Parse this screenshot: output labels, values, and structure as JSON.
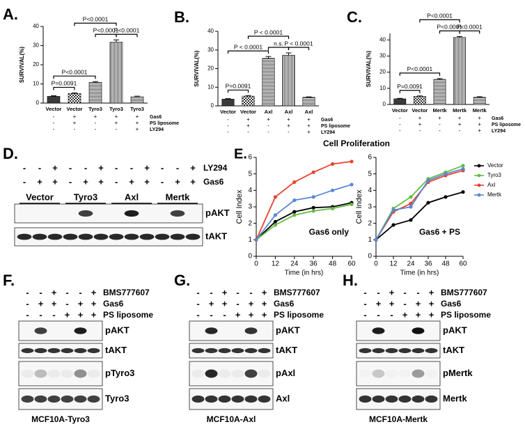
{
  "chart_data": [
    {
      "type": "bar",
      "panel": "A.",
      "ylabel": "SURVIVAL(%)",
      "categories": [
        "Vector",
        "Vector",
        "Tyro3",
        "Tyro3",
        "Tyro3"
      ],
      "values": [
        3.5,
        5.0,
        10.8,
        31.8,
        3.3
      ],
      "errors": [
        0.3,
        0.3,
        0.4,
        1.2,
        0.3
      ],
      "patterns": [
        "solid",
        "checker",
        "hlines",
        "vlines",
        "hlines"
      ],
      "ylim": [
        0,
        40
      ],
      "yticks": [
        0,
        10,
        20,
        30,
        40
      ],
      "conditions": [
        {
          "name": "Gas6",
          "signs": [
            "-",
            "+",
            "+",
            "+",
            "+"
          ]
        },
        {
          "name": "PS liposome",
          "signs": [
            "-",
            "+",
            "-",
            "+",
            "+"
          ]
        },
        {
          "name": "LY294",
          "signs": [
            "-",
            "-",
            "-",
            "-",
            "+"
          ]
        }
      ],
      "comparisons": [
        {
          "from": 0,
          "to": 1,
          "label": "P=0.0091"
        },
        {
          "from": 0,
          "to": 2,
          "label": "P<0.0001"
        },
        {
          "from": 2,
          "to": 3,
          "label": "P<0.0001"
        },
        {
          "from": 3,
          "to": 4,
          "label": "P<0.0001"
        },
        {
          "from": 1,
          "to": 3,
          "label": "P<0.0001"
        }
      ]
    },
    {
      "type": "bar",
      "panel": "B.",
      "ylabel": "SURVIVAL(%)",
      "categories": [
        "Vector",
        "Vector",
        "Axl",
        "Axl",
        "Axl"
      ],
      "values": [
        3.6,
        5.2,
        25.5,
        27.2,
        4.6
      ],
      "errors": [
        0.3,
        0.3,
        1.0,
        1.2,
        0.2
      ],
      "patterns": [
        "solid",
        "checker",
        "hlines",
        "vlines",
        "hlines"
      ],
      "ylim": [
        0,
        40
      ],
      "yticks": [
        0,
        10,
        20,
        30,
        40
      ],
      "conditions": [
        {
          "name": "Gas6",
          "signs": [
            "-",
            "+",
            "+",
            "+",
            "+"
          ]
        },
        {
          "name": "PS liposome",
          "signs": [
            "-",
            "+",
            "-",
            "+",
            "+"
          ]
        },
        {
          "name": "LY294",
          "signs": [
            "-",
            "-",
            "-",
            "-",
            "+"
          ]
        }
      ],
      "comparisons": [
        {
          "from": 0,
          "to": 1,
          "label": "P=0.0091"
        },
        {
          "from": 0,
          "to": 2,
          "label": "P < 0.0001"
        },
        {
          "from": 2,
          "to": 3,
          "label": "n.s."
        },
        {
          "from": 3,
          "to": 4,
          "label": "P < 0.0001"
        },
        {
          "from": 1,
          "to": 3,
          "label": "P < 0.0001"
        }
      ]
    },
    {
      "type": "bar",
      "panel": "C.",
      "ylabel": "SURVIVAL(%)",
      "categories": [
        "Vector",
        "Vector",
        "Mertk",
        "Mertk",
        "Mertk"
      ],
      "values": [
        3.5,
        5.0,
        15.5,
        41.5,
        4.5
      ],
      "errors": [
        0.3,
        0.3,
        0.5,
        0.6,
        0.3
      ],
      "patterns": [
        "solid",
        "checker",
        "hlines",
        "vlines",
        "hlines"
      ],
      "ylim": [
        0,
        44
      ],
      "yticks": [
        0,
        10,
        20,
        30,
        40
      ],
      "conditions": [
        {
          "name": "Gas6",
          "signs": [
            "-",
            "+",
            "+",
            "+",
            "+"
          ]
        },
        {
          "name": "PS liposome",
          "signs": [
            "-",
            "+",
            "-",
            "+",
            "+"
          ]
        },
        {
          "name": "LY294",
          "signs": [
            "-",
            "-",
            "-",
            "-",
            "+"
          ]
        }
      ],
      "comparisons": [
        {
          "from": 0,
          "to": 1,
          "label": "P=0.0091"
        },
        {
          "from": 0,
          "to": 2,
          "label": "P<0.0001"
        },
        {
          "from": 2,
          "to": 3,
          "label": "P<0.0001"
        },
        {
          "from": 3,
          "to": 4,
          "label": "P<0.0001"
        },
        {
          "from": 1,
          "to": 3,
          "label": "P<0.0001"
        }
      ]
    },
    {
      "type": "line",
      "panel": "E.",
      "title": "Cell Proliferation",
      "annotation": "Gas6 only",
      "ylabel": "Cell Index",
      "xlabel": "Time (in hrs)",
      "x": [
        0,
        12,
        24,
        36,
        48,
        60
      ],
      "xlim": [
        0,
        60
      ],
      "xticks": [
        0,
        12,
        24,
        36,
        48,
        60
      ],
      "ylim": [
        0,
        6
      ],
      "yticks": [
        0,
        1,
        2,
        3,
        4,
        5,
        6
      ],
      "series": [
        {
          "color": "#000000",
          "values": [
            1,
            2.1,
            2.7,
            2.95,
            3.0,
            3.25
          ]
        },
        {
          "color": "#66bb44",
          "values": [
            1,
            1.9,
            2.5,
            2.75,
            2.9,
            3.15
          ]
        },
        {
          "color": "#e8432e",
          "values": [
            1,
            3.6,
            4.5,
            5.1,
            5.6,
            5.75
          ]
        },
        {
          "color": "#5a86d6",
          "values": [
            1,
            2.5,
            3.4,
            3.6,
            4.0,
            4.35
          ]
        }
      ]
    },
    {
      "type": "line",
      "annotation": "Gas6 + PS",
      "ylabel": "Cell Index",
      "xlabel": "Time (in hrs)",
      "x": [
        0,
        12,
        24,
        36,
        48,
        60
      ],
      "xlim": [
        0,
        60
      ],
      "xticks": [
        0,
        12,
        24,
        36,
        48,
        60
      ],
      "ylim": [
        0,
        6
      ],
      "yticks": [
        0,
        1,
        2,
        3,
        4,
        5,
        6
      ],
      "legend": "outside-right",
      "series": [
        {
          "name": "Vector",
          "color": "#000000",
          "values": [
            1,
            1.9,
            2.2,
            3.25,
            3.6,
            3.9
          ]
        },
        {
          "name": "Tyro3",
          "color": "#66bb44",
          "values": [
            1,
            2.9,
            3.6,
            4.7,
            5.1,
            5.5
          ]
        },
        {
          "name": "Axl",
          "color": "#e8432e",
          "values": [
            1,
            2.7,
            3.2,
            4.5,
            4.9,
            5.2
          ]
        },
        {
          "name": "Mertk",
          "color": "#5a86d6",
          "values": [
            1,
            2.8,
            3.0,
            4.6,
            5.0,
            5.3
          ]
        }
      ]
    }
  ],
  "blots": [
    {
      "panel": "D.",
      "conditions": [
        {
          "name": "LY294",
          "signs": [
            "-",
            "-",
            "+",
            "-",
            "-",
            "+",
            "-",
            "-",
            "+",
            "-",
            "-",
            "+"
          ]
        },
        {
          "name": "Gas6",
          "signs": [
            "-",
            "+",
            "+",
            "-",
            "+",
            "+",
            "-",
            "+",
            "+",
            "-",
            "+",
            "+"
          ]
        }
      ],
      "groups": [
        "Vector",
        "Tyro3",
        "Axl",
        "Mertk"
      ],
      "rows": [
        {
          "label": "pAKT",
          "intensity": [
            0,
            0,
            0,
            0,
            0.8,
            0,
            0,
            0.95,
            0,
            0,
            0.8,
            0
          ]
        },
        {
          "label": "tAKT",
          "intensity": [
            0.9,
            0.9,
            0.9,
            0.9,
            0.9,
            0.9,
            0.9,
            0.9,
            0.9,
            0.9,
            0.9,
            0.9
          ]
        }
      ]
    },
    {
      "panel": "F.",
      "conditions": [
        {
          "name": "BMS777607",
          "signs": [
            "-",
            "-",
            "+",
            "-",
            "-",
            "+"
          ]
        },
        {
          "name": "Gas6",
          "signs": [
            "-",
            "+",
            "+",
            "-",
            "+",
            "+"
          ]
        },
        {
          "name": "PS liposome",
          "signs": [
            "-",
            "-",
            "-",
            "+",
            "+",
            "+"
          ]
        }
      ],
      "rows": [
        {
          "label": "pAKT",
          "intensity": [
            0,
            0.8,
            0,
            0,
            0.95,
            0
          ]
        },
        {
          "label": "tAKT",
          "intensity": [
            0.85,
            0.85,
            0.85,
            0.85,
            0.85,
            0.85
          ]
        },
        {
          "label": "pTyro3",
          "intensity": [
            0.05,
            0.25,
            0.05,
            0.05,
            0.45,
            0.05
          ]
        },
        {
          "label": "Tyro3",
          "intensity": [
            0.8,
            0.8,
            0.8,
            0.8,
            0.8,
            0.8
          ]
        }
      ],
      "caption": "MCF10A-Tyro3"
    },
    {
      "panel": "G.",
      "conditions": [
        {
          "name": "BMS777607",
          "signs": [
            "-",
            "-",
            "+",
            "-",
            "-",
            "+"
          ]
        },
        {
          "name": "Gas6",
          "signs": [
            "-",
            "+",
            "+",
            "-",
            "+",
            "+"
          ]
        },
        {
          "name": "PS liposome",
          "signs": [
            "-",
            "-",
            "-",
            "+",
            "+",
            "+"
          ]
        }
      ],
      "rows": [
        {
          "label": "pAKT",
          "intensity": [
            0,
            0.9,
            0,
            0,
            0.85,
            0
          ]
        },
        {
          "label": "tAKT",
          "intensity": [
            0.85,
            0.85,
            0.85,
            0.85,
            0.85,
            0.85
          ]
        },
        {
          "label": "pAxl",
          "intensity": [
            0.05,
            0.9,
            0.05,
            0.05,
            0.8,
            0.05
          ]
        },
        {
          "label": "Axl",
          "intensity": [
            0.85,
            0.85,
            0.85,
            0.85,
            0.85,
            0.85
          ]
        }
      ],
      "caption": "MCF10A-Axl"
    },
    {
      "panel": "H.",
      "conditions": [
        {
          "name": "BMS777607",
          "signs": [
            "-",
            "-",
            "+",
            "-",
            "-",
            "+"
          ]
        },
        {
          "name": "Gas6",
          "signs": [
            "-",
            "+",
            "+",
            "-",
            "+",
            "+"
          ]
        },
        {
          "name": "PS liposome",
          "signs": [
            "-",
            "-",
            "-",
            "+",
            "+",
            "+"
          ]
        }
      ],
      "rows": [
        {
          "label": "pAKT",
          "intensity": [
            0,
            0.95,
            0,
            0,
            1,
            0
          ]
        },
        {
          "label": "tAKT",
          "intensity": [
            0.85,
            0.85,
            0.85,
            0.85,
            0.85,
            0.85
          ]
        },
        {
          "label": "pMertk",
          "intensity": [
            0.02,
            0.2,
            0.02,
            0.02,
            0.4,
            0.02
          ]
        },
        {
          "label": "Mertk",
          "intensity": [
            0.85,
            0.85,
            0.85,
            0.85,
            0.85,
            0.85
          ]
        }
      ],
      "caption": "MCF10A-Mertk"
    }
  ]
}
